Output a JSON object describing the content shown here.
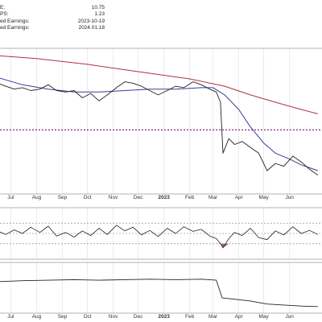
{
  "info_panel": [
    {
      "label": "E:",
      "value": "10.75"
    },
    {
      "label": "PS:",
      "value": "1.23"
    },
    {
      "label": "ed Earnings:",
      "value": "2023-10-19"
    },
    {
      "label": "ed Earnings:",
      "value": "2024.01.18"
    }
  ],
  "colors": {
    "price": "#222222",
    "ma_short": "#3a3a9a",
    "ma_long": "#b03040",
    "resistance": "#7a2a7a",
    "rsi": "#222222",
    "rsi_oversold_fill": "#9a4a4a",
    "grid": "#d8d8d8",
    "panel_border": "#9a9a9a"
  },
  "chart_data": {
    "type": "line",
    "x_ticks": [
      {
        "date": "2022-07",
        "label": "Jul"
      },
      {
        "date": "2022-08",
        "label": "Aug"
      },
      {
        "date": "2022-09",
        "label": "Sep"
      },
      {
        "date": "2022-10",
        "label": "Oct"
      },
      {
        "date": "2022-11",
        "label": "Nov"
      },
      {
        "date": "2022-12",
        "label": "Dec"
      },
      {
        "date": "2023-01",
        "label": "2023",
        "bold": true
      },
      {
        "date": "2023-02",
        "label": "Feb"
      },
      {
        "date": "2023-03",
        "label": "Mar"
      },
      {
        "date": "2023-04",
        "label": "Apr"
      },
      {
        "date": "2023-05",
        "label": "May"
      },
      {
        "date": "2023-06",
        "label": "Jun"
      }
    ],
    "main_panel": {
      "y_range": [
        0,
        100
      ],
      "price_close": [
        [
          "2022-06-15",
          76
        ],
        [
          "2022-06-25",
          74
        ],
        [
          "2022-07-05",
          72
        ],
        [
          "2022-07-15",
          73
        ],
        [
          "2022-07-25",
          71
        ],
        [
          "2022-08-05",
          72
        ],
        [
          "2022-08-15",
          75
        ],
        [
          "2022-08-25",
          71
        ],
        [
          "2022-09-05",
          70
        ],
        [
          "2022-09-15",
          71
        ],
        [
          "2022-09-25",
          66
        ],
        [
          "2022-10-05",
          69
        ],
        [
          "2022-10-15",
          64
        ],
        [
          "2022-10-25",
          68
        ],
        [
          "2022-11-05",
          73
        ],
        [
          "2022-11-15",
          77
        ],
        [
          "2022-11-25",
          76
        ],
        [
          "2022-12-05",
          74
        ],
        [
          "2022-12-15",
          71
        ],
        [
          "2022-12-25",
          68
        ],
        [
          "2023-01-05",
          71
        ],
        [
          "2023-01-15",
          74
        ],
        [
          "2023-01-25",
          73
        ],
        [
          "2023-02-05",
          77
        ],
        [
          "2023-02-15",
          75
        ],
        [
          "2023-02-25",
          72
        ],
        [
          "2023-03-05",
          70
        ],
        [
          "2023-03-10",
          63
        ],
        [
          "2023-03-13",
          28
        ],
        [
          "2023-03-20",
          38
        ],
        [
          "2023-03-27",
          34
        ],
        [
          "2023-04-05",
          36
        ],
        [
          "2023-04-15",
          32
        ],
        [
          "2023-04-25",
          28
        ],
        [
          "2023-05-05",
          16
        ],
        [
          "2023-05-15",
          21
        ],
        [
          "2023-05-25",
          19
        ],
        [
          "2023-06-05",
          26
        ],
        [
          "2023-06-15",
          22
        ],
        [
          "2023-06-25",
          17
        ],
        [
          "2023-07-05",
          13
        ]
      ],
      "ma_short": [
        [
          "2022-06-15",
          80
        ],
        [
          "2022-07-15",
          75
        ],
        [
          "2022-08-15",
          72
        ],
        [
          "2022-09-15",
          70
        ],
        [
          "2022-10-15",
          70
        ],
        [
          "2022-11-15",
          71
        ],
        [
          "2022-12-15",
          72
        ],
        [
          "2023-01-15",
          72
        ],
        [
          "2023-02-15",
          73
        ],
        [
          "2023-03-01",
          73
        ],
        [
          "2023-03-15",
          68
        ],
        [
          "2023-04-01",
          58
        ],
        [
          "2023-04-15",
          46
        ],
        [
          "2023-05-01",
          35
        ],
        [
          "2023-05-15",
          28
        ],
        [
          "2023-06-01",
          24
        ],
        [
          "2023-06-15",
          20
        ],
        [
          "2023-07-05",
          16
        ]
      ],
      "ma_long": [
        [
          "2022-06-15",
          95
        ],
        [
          "2022-08-01",
          93
        ],
        [
          "2022-10-01",
          89
        ],
        [
          "2022-12-01",
          84
        ],
        [
          "2023-02-01",
          79
        ],
        [
          "2023-03-15",
          74
        ],
        [
          "2023-04-15",
          68
        ],
        [
          "2023-05-15",
          63
        ],
        [
          "2023-06-15",
          58
        ],
        [
          "2023-07-05",
          55
        ]
      ],
      "resistance_level": 44
    },
    "rsi_panel": {
      "y_range": [
        0,
        100
      ],
      "levels": [
        70,
        50,
        30
      ],
      "values": [
        [
          "2022-06-15",
          55
        ],
        [
          "2022-06-25",
          48
        ],
        [
          "2022-07-05",
          57
        ],
        [
          "2022-07-15",
          50
        ],
        [
          "2022-07-25",
          62
        ],
        [
          "2022-08-05",
          52
        ],
        [
          "2022-08-15",
          64
        ],
        [
          "2022-08-25",
          45
        ],
        [
          "2022-09-05",
          52
        ],
        [
          "2022-09-15",
          43
        ],
        [
          "2022-09-25",
          55
        ],
        [
          "2022-10-05",
          46
        ],
        [
          "2022-10-15",
          60
        ],
        [
          "2022-10-25",
          48
        ],
        [
          "2022-11-05",
          66
        ],
        [
          "2022-11-15",
          55
        ],
        [
          "2022-11-25",
          62
        ],
        [
          "2022-12-05",
          47
        ],
        [
          "2022-12-15",
          56
        ],
        [
          "2022-12-25",
          44
        ],
        [
          "2023-01-05",
          60
        ],
        [
          "2023-01-15",
          50
        ],
        [
          "2023-01-25",
          63
        ],
        [
          "2023-02-05",
          54
        ],
        [
          "2023-02-15",
          58
        ],
        [
          "2023-02-25",
          45
        ],
        [
          "2023-03-05",
          40
        ],
        [
          "2023-03-10",
          30
        ],
        [
          "2023-03-13",
          22
        ],
        [
          "2023-03-20",
          40
        ],
        [
          "2023-03-27",
          52
        ],
        [
          "2023-04-05",
          46
        ],
        [
          "2023-04-15",
          60
        ],
        [
          "2023-04-25",
          42
        ],
        [
          "2023-05-05",
          38
        ],
        [
          "2023-05-15",
          55
        ],
        [
          "2023-05-25",
          47
        ],
        [
          "2023-06-05",
          63
        ],
        [
          "2023-06-15",
          50
        ],
        [
          "2023-06-25",
          56
        ],
        [
          "2023-07-05",
          48
        ]
      ]
    },
    "lower_panel": {
      "y_range": [
        0,
        100
      ],
      "values": [
        [
          "2022-06-15",
          62
        ],
        [
          "2022-07-15",
          64
        ],
        [
          "2022-08-15",
          65
        ],
        [
          "2022-09-15",
          66
        ],
        [
          "2022-10-15",
          65
        ],
        [
          "2022-11-15",
          66
        ],
        [
          "2022-12-15",
          67
        ],
        [
          "2023-01-15",
          66
        ],
        [
          "2023-02-15",
          67
        ],
        [
          "2023-03-05",
          65
        ],
        [
          "2023-03-12",
          30
        ],
        [
          "2023-03-25",
          28
        ],
        [
          "2023-04-15",
          24
        ],
        [
          "2023-05-05",
          18
        ],
        [
          "2023-05-25",
          16
        ],
        [
          "2023-06-15",
          14
        ],
        [
          "2023-07-05",
          13
        ]
      ]
    }
  }
}
